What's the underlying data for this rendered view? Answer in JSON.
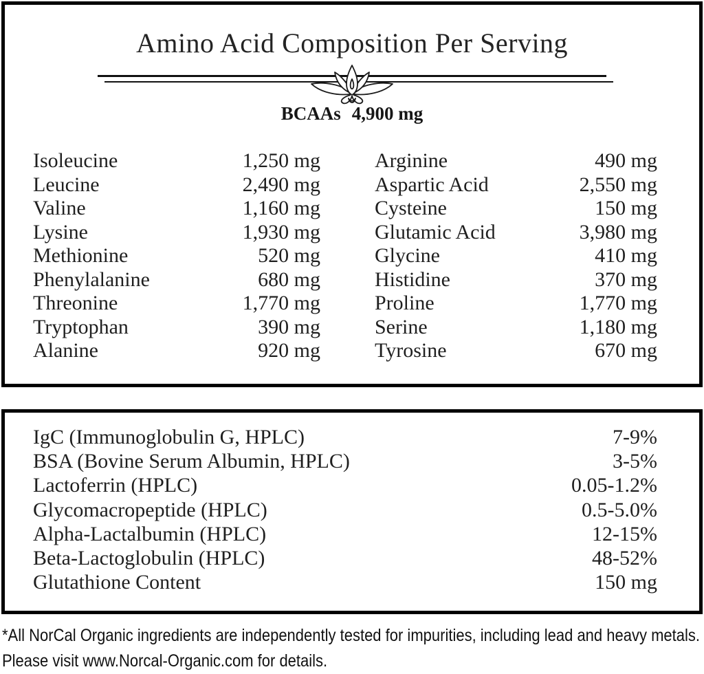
{
  "title": "Amino Acid Composition Per Serving",
  "bcaa": {
    "label": "BCAAs",
    "value": "4,900 mg"
  },
  "amino_acids": {
    "left": [
      {
        "name": "Isoleucine",
        "value": "1,250 mg"
      },
      {
        "name": "Leucine",
        "value": "2,490 mg"
      },
      {
        "name": "Valine",
        "value": "1,160 mg"
      },
      {
        "name": "Lysine",
        "value": "1,930 mg"
      },
      {
        "name": "Methionine",
        "value": "520 mg"
      },
      {
        "name": "Phenylalanine",
        "value": "680 mg"
      },
      {
        "name": "Threonine",
        "value": "1,770 mg"
      },
      {
        "name": "Tryptophan",
        "value": "390 mg"
      },
      {
        "name": "Alanine",
        "value": "920 mg"
      }
    ],
    "right": [
      {
        "name": "Arginine",
        "value": "490 mg"
      },
      {
        "name": "Aspartic Acid",
        "value": "2,550 mg"
      },
      {
        "name": "Cysteine",
        "value": "150 mg"
      },
      {
        "name": "Glutamic Acid",
        "value": "3,980 mg"
      },
      {
        "name": "Glycine",
        "value": "410 mg"
      },
      {
        "name": "Histidine",
        "value": "370 mg"
      },
      {
        "name": "Proline",
        "value": "1,770 mg"
      },
      {
        "name": "Serine",
        "value": "1,180 mg"
      },
      {
        "name": "Tyrosine",
        "value": "670 mg"
      }
    ]
  },
  "protein_fractions": [
    {
      "name": "IgC (Immunoglobulin G, HPLC)",
      "value": "7-9%"
    },
    {
      "name": "BSA (Bovine Serum Albumin, HPLC)",
      "value": "3-5%"
    },
    {
      "name": "Lactoferrin (HPLC)",
      "value": "0.05-1.2%"
    },
    {
      "name": "Glycomacropeptide (HPLC)",
      "value": "0.5-5.0%"
    },
    {
      "name": "Alpha-Lactalbumin (HPLC)",
      "value": "12-15%"
    },
    {
      "name": "Beta-Lactoglobulin (HPLC)",
      "value": "48-52%"
    },
    {
      "name": "Glutathione Content",
      "value": "150 mg"
    }
  ],
  "footnote": "*All NorCal Organic ingredients are independently tested for impurities, including lead and heavy metals. Please visit www.Norcal-Organic.com for details.",
  "colors": {
    "border": "#000000",
    "text": "#1f1f1f",
    "background": "#ffffff"
  }
}
